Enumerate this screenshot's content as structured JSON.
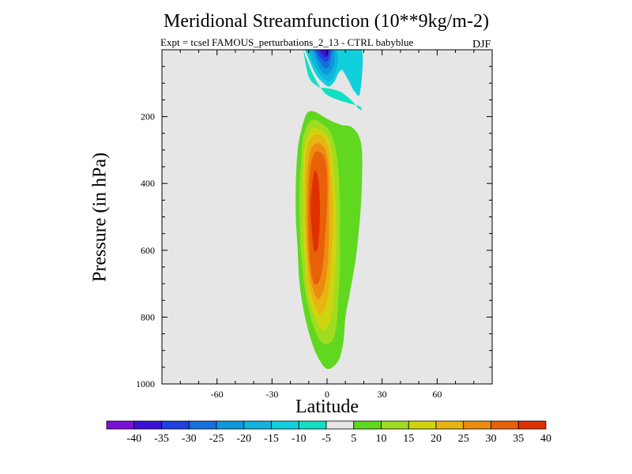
{
  "chart_data": {
    "type": "heatmap",
    "title": "Meridional Streamfunction (10**9kg/m-2)",
    "subtitle_left": "Expt = tcsel",
    "subtitle_overlap": "FAMOUS_perturbations_2_13 - CTRL babyblue",
    "season": "DJF",
    "xlabel": "Latitude",
    "ylabel": "Pressure (in hPa)",
    "xlim": [
      -90,
      90
    ],
    "ylim": [
      0,
      1000
    ],
    "y_inverted": true,
    "x_ticks": [
      -60,
      -30,
      0,
      30,
      60
    ],
    "y_ticks": [
      200,
      400,
      600,
      800,
      1000
    ],
    "background_color": "#e6e6e6",
    "colorbar": {
      "levels": [
        "-40",
        "-35",
        "-30",
        "-25",
        "-20",
        "-15",
        "-10",
        "-5",
        "5",
        "10",
        "15",
        "20",
        "25",
        "30",
        "35",
        "40"
      ],
      "colors": [
        "#7c10d8",
        "#3c10d8",
        "#2040e0",
        "#1470dc",
        "#0c98dc",
        "#10b4dc",
        "#10d0dc",
        "#10e0c4",
        "#e6e6e6",
        "#60d820",
        "#a0dc20",
        "#d0d410",
        "#e8b410",
        "#ec8c10",
        "#e86008",
        "#e03000"
      ]
    },
    "contours": [
      {
        "name": "neg-cell",
        "level": -10,
        "color": "#10e0c4",
        "lat": [
          -13,
          -11,
          -8,
          -4,
          0,
          6,
          12,
          15,
          18,
          19,
          17,
          13,
          7,
          0,
          -5,
          -10,
          -13
        ],
        "p": [
          0,
          30,
          70,
          110,
          135,
          150,
          160,
          165,
          170,
          180,
          175,
          150,
          125,
          115,
          110,
          80,
          0
        ]
      },
      {
        "name": "neg-cell",
        "level": -15,
        "color": "#10d0dc",
        "lat": [
          -12,
          -9,
          -6,
          -2,
          1,
          4,
          6,
          8,
          10,
          12,
          15,
          18,
          19,
          10,
          5,
          0,
          -6,
          -12
        ],
        "p": [
          0,
          40,
          75,
          100,
          110,
          95,
          72,
          60,
          75,
          95,
          125,
          128,
          0,
          0,
          0,
          0,
          0,
          0
        ]
      },
      {
        "name": "neg-cell",
        "level": -20,
        "color": "#10b4dc",
        "lat": [
          -10,
          -8,
          -5,
          -2,
          1,
          3,
          5,
          6,
          5,
          2,
          -2,
          -6,
          -10
        ],
        "p": [
          0,
          35,
          65,
          85,
          95,
          85,
          60,
          30,
          0,
          0,
          0,
          0,
          0
        ]
      },
      {
        "name": "neg-cell",
        "level": -25,
        "color": "#0c98dc",
        "lat": [
          -8,
          -6,
          -4,
          -2,
          0,
          2,
          4,
          4,
          2,
          -1,
          -4,
          -8
        ],
        "p": [
          0,
          30,
          55,
          70,
          75,
          65,
          40,
          0,
          0,
          0,
          0,
          0
        ]
      },
      {
        "name": "neg-cell",
        "level": -30,
        "color": "#1470dc",
        "lat": [
          -7,
          -5,
          -3,
          -1,
          1,
          2,
          3,
          2,
          -1,
          -4,
          -7
        ],
        "p": [
          0,
          25,
          45,
          55,
          50,
          30,
          0,
          0,
          0,
          0,
          0
        ]
      },
      {
        "name": "neg-cell",
        "level": -35,
        "color": "#2040e0",
        "lat": [
          -6,
          -4,
          -2,
          0,
          1,
          2,
          1,
          -2,
          -6
        ],
        "p": [
          0,
          20,
          32,
          35,
          25,
          0,
          0,
          0,
          0
        ]
      },
      {
        "name": "neg-cell",
        "level": -40,
        "color": "#3c10d8",
        "lat": [
          -4,
          -2,
          0,
          1,
          0,
          -4
        ],
        "p": [
          0,
          18,
          20,
          0,
          0,
          0
        ]
      },
      {
        "name": "pos-cell",
        "level": 5,
        "color": "#60d820",
        "lat": [
          -11,
          -14,
          -16,
          -17,
          -17,
          -16,
          -15,
          -12,
          -8,
          -4,
          0,
          4,
          7,
          9,
          10,
          12,
          14,
          16,
          18,
          19,
          19,
          17,
          13,
          8,
          3,
          -2,
          -7
        ],
        "p": [
          190,
          240,
          300,
          400,
          500,
          600,
          700,
          800,
          880,
          930,
          955,
          945,
          920,
          870,
          800,
          740,
          680,
          610,
          500,
          400,
          300,
          255,
          230,
          225,
          215,
          200,
          185
        ]
      },
      {
        "name": "pos-cell",
        "level": 10,
        "color": "#a0dc20",
        "lat": [
          -10,
          -13,
          -14,
          -15,
          -15,
          -14,
          -12,
          -9,
          -5,
          -1,
          3,
          5,
          6,
          7,
          7,
          7,
          6,
          4,
          1,
          -3,
          -7
        ],
        "p": [
          220,
          260,
          320,
          420,
          520,
          620,
          720,
          800,
          860,
          880,
          870,
          830,
          760,
          660,
          560,
          450,
          350,
          280,
          240,
          220,
          210
        ]
      },
      {
        "name": "pos-cell",
        "level": 15,
        "color": "#d0d410",
        "lat": [
          -9,
          -12,
          -13,
          -13,
          -13,
          -12,
          -11,
          -8,
          -5,
          -2,
          1,
          3,
          4,
          5,
          5,
          4,
          3,
          1,
          -2,
          -6
        ],
        "p": [
          240,
          280,
          340,
          440,
          540,
          640,
          720,
          780,
          820,
          840,
          820,
          780,
          700,
          600,
          500,
          400,
          320,
          270,
          245,
          235
        ]
      },
      {
        "name": "pos-cell",
        "level": 20,
        "color": "#e8b410",
        "lat": [
          -8,
          -11,
          -12,
          -12,
          -11,
          -10,
          -7,
          -4,
          -1,
          1,
          2,
          3,
          3,
          2,
          1,
          -1,
          -4
        ],
        "p": [
          260,
          300,
          380,
          500,
          620,
          700,
          760,
          790,
          770,
          720,
          640,
          540,
          440,
          360,
          300,
          270,
          255
        ]
      },
      {
        "name": "pos-cell",
        "level": 25,
        "color": "#ec8c10",
        "lat": [
          -8,
          -10,
          -11,
          -11,
          -10,
          -8,
          -5,
          -2,
          0,
          1,
          1,
          1,
          0,
          -2,
          -5
        ],
        "p": [
          290,
          330,
          420,
          540,
          640,
          710,
          745,
          720,
          660,
          570,
          470,
          380,
          320,
          290,
          280
        ]
      },
      {
        "name": "pos-cell",
        "level": 30,
        "color": "#e86008",
        "lat": [
          -7,
          -9,
          -10,
          -10,
          -9,
          -7,
          -4,
          -2,
          -1,
          0,
          0,
          -1,
          -3,
          -5
        ],
        "p": [
          310,
          350,
          440,
          560,
          650,
          700,
          690,
          630,
          550,
          460,
          380,
          330,
          310,
          305
        ]
      },
      {
        "name": "pos-cell",
        "level": 35,
        "color": "#e03000",
        "lat": [
          -7,
          -8,
          -9,
          -8,
          -7,
          -5,
          -4,
          -4,
          -5,
          -6
        ],
        "p": [
          365,
          400,
          470,
          560,
          600,
          590,
          520,
          440,
          380,
          365
        ]
      }
    ]
  }
}
